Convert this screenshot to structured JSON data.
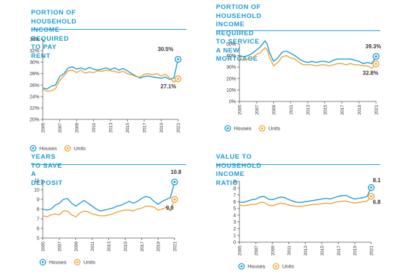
{
  "colors": {
    "houses": "#1a9bd0",
    "units": "#f0a030",
    "title": "#1a9bd0",
    "axis": "#555555"
  },
  "legend_labels": {
    "houses": "Houses",
    "units": "Units"
  },
  "chart_data": [
    {
      "type": "line",
      "title": "PORTION OF HOUSEHOLD INCOME\nREQUIRED TO PAY RENT",
      "xlim": [
        2005,
        2021
      ],
      "ylim": [
        20,
        34
      ],
      "yticks": [
        20,
        22,
        24,
        26,
        28,
        30,
        32,
        34
      ],
      "yticklabels": [
        "20%",
        "22%",
        "24%",
        "26%",
        "28%",
        "30%",
        "32%",
        "34%"
      ],
      "xticks": [
        2005,
        2007,
        2009,
        2011,
        2013,
        2015,
        2017,
        2019,
        2021
      ],
      "xticklabels": [
        "2005",
        "2007",
        "2009",
        "2011",
        "2013",
        "2015",
        "2017",
        "2019",
        "2021"
      ],
      "series": [
        {
          "name": "Houses",
          "x": [
            2005,
            2005.5,
            2006,
            2006.5,
            2007,
            2007.5,
            2008,
            2008.5,
            2009,
            2009.5,
            2010,
            2010.5,
            2011,
            2011.5,
            2012,
            2012.5,
            2013,
            2013.5,
            2014,
            2014.5,
            2015,
            2015.5,
            2016,
            2016.5,
            2017,
            2017.5,
            2018,
            2018.5,
            2019,
            2019.5,
            2020,
            2020.5,
            2021
          ],
          "values": [
            25.5,
            25.3,
            25.8,
            26.0,
            27.5,
            28.0,
            29.0,
            29.2,
            28.8,
            29.0,
            28.7,
            29.1,
            28.8,
            28.6,
            28.8,
            29.0,
            28.7,
            29.0,
            28.6,
            28.9,
            28.5,
            28.0,
            27.6,
            27.2,
            27.5,
            27.6,
            27.4,
            27.3,
            27.2,
            27.4,
            27.0,
            27.2,
            30.5
          ]
        },
        {
          "name": "Units",
          "x": [
            2005,
            2005.5,
            2006,
            2006.5,
            2007,
            2007.5,
            2008,
            2008.5,
            2009,
            2009.5,
            2010,
            2010.5,
            2011,
            2011.5,
            2012,
            2012.5,
            2013,
            2013.5,
            2014,
            2014.5,
            2015,
            2015.5,
            2016,
            2016.5,
            2017,
            2017.5,
            2018,
            2018.5,
            2019,
            2019.5,
            2020,
            2020.5,
            2021
          ],
          "values": [
            25.3,
            24.9,
            25.0,
            25.4,
            26.8,
            27.6,
            28.5,
            28.6,
            28.2,
            28.6,
            28.1,
            28.3,
            28.2,
            28.5,
            28.4,
            28.6,
            28.5,
            28.4,
            28.2,
            28.4,
            28.0,
            27.8,
            27.5,
            27.4,
            27.9,
            28.0,
            27.8,
            28.0,
            27.6,
            27.9,
            27.3,
            26.5,
            27.1
          ]
        }
      ],
      "end_labels": [
        "30.5%",
        "27.1%"
      ]
    },
    {
      "type": "line",
      "title": "PORTION OF HOUSEHOLD\nINCOME REQUIRED TO SERVICE\nA NEW MORTGAGE",
      "xlim": [
        2005,
        2021
      ],
      "ylim": [
        0,
        50
      ],
      "yticks": [
        0,
        10,
        20,
        30,
        40,
        50
      ],
      "yticklabels": [
        "0%",
        "10%",
        "20%",
        "30%",
        "40%",
        "50%"
      ],
      "xticks": [
        2005,
        2007,
        2009,
        2011,
        2013,
        2015,
        2017,
        2019,
        2021
      ],
      "xticklabels": [
        "2005",
        "2007",
        "2009",
        "2011",
        "2013",
        "2015",
        "2017",
        "2019",
        "2021"
      ],
      "series": [
        {
          "name": "Houses",
          "x": [
            2005,
            2005.5,
            2006,
            2006.5,
            2007,
            2007.5,
            2008,
            2008.25,
            2008.5,
            2009,
            2009.5,
            2010,
            2010.5,
            2011,
            2011.5,
            2012,
            2012.5,
            2013,
            2013.5,
            2014,
            2014.5,
            2015,
            2015.5,
            2016,
            2016.5,
            2017,
            2017.5,
            2018,
            2018.5,
            2019,
            2019.5,
            2020,
            2020.5,
            2021
          ],
          "values": [
            40,
            39,
            40,
            42,
            45,
            48,
            53,
            50,
            43,
            35,
            38,
            43,
            44,
            42,
            40,
            37,
            35,
            34,
            35,
            34,
            35,
            35,
            34,
            36,
            37,
            37,
            37,
            37,
            36,
            35,
            33,
            34,
            33,
            39.3
          ]
        },
        {
          "name": "Units",
          "x": [
            2005,
            2005.5,
            2006,
            2006.5,
            2007,
            2007.5,
            2008,
            2008.25,
            2008.5,
            2009,
            2009.5,
            2010,
            2010.5,
            2011,
            2011.5,
            2012,
            2012.5,
            2013,
            2013.5,
            2014,
            2014.5,
            2015,
            2015.5,
            2016,
            2016.5,
            2017,
            2017.5,
            2018,
            2018.5,
            2019,
            2019.5,
            2020,
            2020.5,
            2021
          ],
          "values": [
            37,
            36,
            37,
            38,
            41,
            43,
            47,
            45,
            39,
            31,
            34,
            39,
            40,
            38,
            37,
            34,
            32,
            32,
            32,
            31,
            32,
            32,
            31,
            32,
            33,
            33,
            32,
            33,
            32,
            32,
            31,
            31,
            29,
            32.8
          ]
        }
      ],
      "end_labels": [
        "39.3%",
        "32.8%"
      ]
    },
    {
      "type": "line",
      "title": "YEARS TO SAVE A DEPOSIT",
      "xlim": [
        2005,
        2021
      ],
      "ylim": [
        5,
        11
      ],
      "yticks": [
        5,
        6,
        7,
        8,
        9,
        10,
        11
      ],
      "yticklabels": [
        "5",
        "6",
        "7",
        "8",
        "9",
        "10",
        "11"
      ],
      "xticks": [
        2005,
        2007,
        2009,
        2011,
        2013,
        2015,
        2017,
        2019,
        2021
      ],
      "xticklabels": [
        "2005",
        "2007",
        "2009",
        "2011",
        "2013",
        "2015",
        "2017",
        "2019",
        "2021"
      ],
      "series": [
        {
          "name": "Houses",
          "x": [
            2005,
            2005.5,
            2006,
            2006.5,
            2007,
            2007.5,
            2008,
            2008.5,
            2009,
            2009.5,
            2010,
            2010.5,
            2011,
            2011.5,
            2012,
            2012.5,
            2013,
            2013.5,
            2014,
            2014.5,
            2015,
            2015.5,
            2016,
            2016.5,
            2017,
            2017.5,
            2018,
            2018.5,
            2019,
            2019.5,
            2020,
            2020.5,
            2021
          ],
          "values": [
            8.0,
            7.9,
            8.0,
            8.4,
            8.6,
            9.0,
            9.1,
            8.6,
            8.3,
            8.6,
            8.9,
            8.6,
            8.3,
            8.0,
            7.8,
            7.9,
            8.0,
            8.1,
            8.3,
            8.4,
            8.6,
            8.8,
            8.6,
            8.8,
            9.1,
            9.3,
            9.2,
            8.8,
            8.5,
            8.8,
            9.0,
            9.2,
            10.8
          ]
        },
        {
          "name": "Units",
          "x": [
            2005,
            2005.5,
            2006,
            2006.5,
            2007,
            2007.5,
            2008,
            2008.5,
            2009,
            2009.5,
            2010,
            2010.5,
            2011,
            2011.5,
            2012,
            2012.5,
            2013,
            2013.5,
            2014,
            2014.5,
            2015,
            2015.5,
            2016,
            2016.5,
            2017,
            2017.5,
            2018,
            2018.5,
            2019,
            2019.5,
            2020,
            2020.5,
            2021
          ],
          "values": [
            7.3,
            7.2,
            7.4,
            7.5,
            7.4,
            7.8,
            7.8,
            7.4,
            7.2,
            7.6,
            7.8,
            7.7,
            7.5,
            7.4,
            7.3,
            7.3,
            7.4,
            7.5,
            7.7,
            7.8,
            7.9,
            7.9,
            7.8,
            8.0,
            8.1,
            8.3,
            8.3,
            8.2,
            7.9,
            8.0,
            8.2,
            7.8,
            9.0
          ]
        }
      ],
      "end_labels": [
        "10.8",
        "9.0"
      ]
    },
    {
      "type": "line",
      "title": "VALUE TO HOUSEHOLD INCOME RATIO",
      "xlim": [
        2005,
        2021
      ],
      "ylim": [
        0,
        9
      ],
      "yticks": [
        0,
        1,
        2,
        3,
        4,
        5,
        6,
        7,
        8,
        9
      ],
      "yticklabels": [
        "0",
        "1",
        "2",
        "3",
        "4",
        "5",
        "6",
        "7",
        "8",
        "9"
      ],
      "xticks": [
        2005,
        2007,
        2009,
        2011,
        2013,
        2015,
        2017,
        2019,
        2021
      ],
      "xticklabels": [
        "2005",
        "2007",
        "2009",
        "2011",
        "2013",
        "2015",
        "2017",
        "2019",
        "2021"
      ],
      "series": [
        {
          "name": "Houses",
          "x": [
            2005,
            2005.5,
            2006,
            2006.5,
            2007,
            2007.5,
            2008,
            2008.5,
            2009,
            2009.5,
            2010,
            2010.5,
            2011,
            2011.5,
            2012,
            2012.5,
            2013,
            2013.5,
            2014,
            2014.5,
            2015,
            2015.5,
            2016,
            2016.5,
            2017,
            2017.5,
            2018,
            2018.5,
            2019,
            2019.5,
            2020,
            2020.5,
            2021
          ],
          "values": [
            5.9,
            5.9,
            6.1,
            6.3,
            6.4,
            6.7,
            6.8,
            6.4,
            6.3,
            6.5,
            6.7,
            6.6,
            6.3,
            6.1,
            5.9,
            5.9,
            6.0,
            6.1,
            6.2,
            6.3,
            6.4,
            6.5,
            6.4,
            6.6,
            6.8,
            6.9,
            6.9,
            6.6,
            6.4,
            6.5,
            6.6,
            6.8,
            8.1
          ]
        },
        {
          "name": "Units",
          "x": [
            2005,
            2005.5,
            2006,
            2006.5,
            2007,
            2007.5,
            2008,
            2008.5,
            2009,
            2009.5,
            2010,
            2010.5,
            2011,
            2011.5,
            2012,
            2012.5,
            2013,
            2013.5,
            2014,
            2014.5,
            2015,
            2015.5,
            2016,
            2016.5,
            2017,
            2017.5,
            2018,
            2018.5,
            2019,
            2019.5,
            2020,
            2020.5,
            2021
          ],
          "values": [
            5.5,
            5.4,
            5.5,
            5.6,
            5.6,
            5.9,
            5.9,
            5.5,
            5.4,
            5.6,
            5.8,
            5.7,
            5.5,
            5.4,
            5.3,
            5.3,
            5.4,
            5.5,
            5.6,
            5.6,
            5.7,
            5.8,
            5.7,
            5.9,
            6.0,
            6.1,
            6.1,
            5.9,
            5.8,
            5.9,
            6.0,
            6.1,
            6.8
          ]
        }
      ],
      "end_labels": [
        "8.1",
        "6.8"
      ]
    }
  ]
}
